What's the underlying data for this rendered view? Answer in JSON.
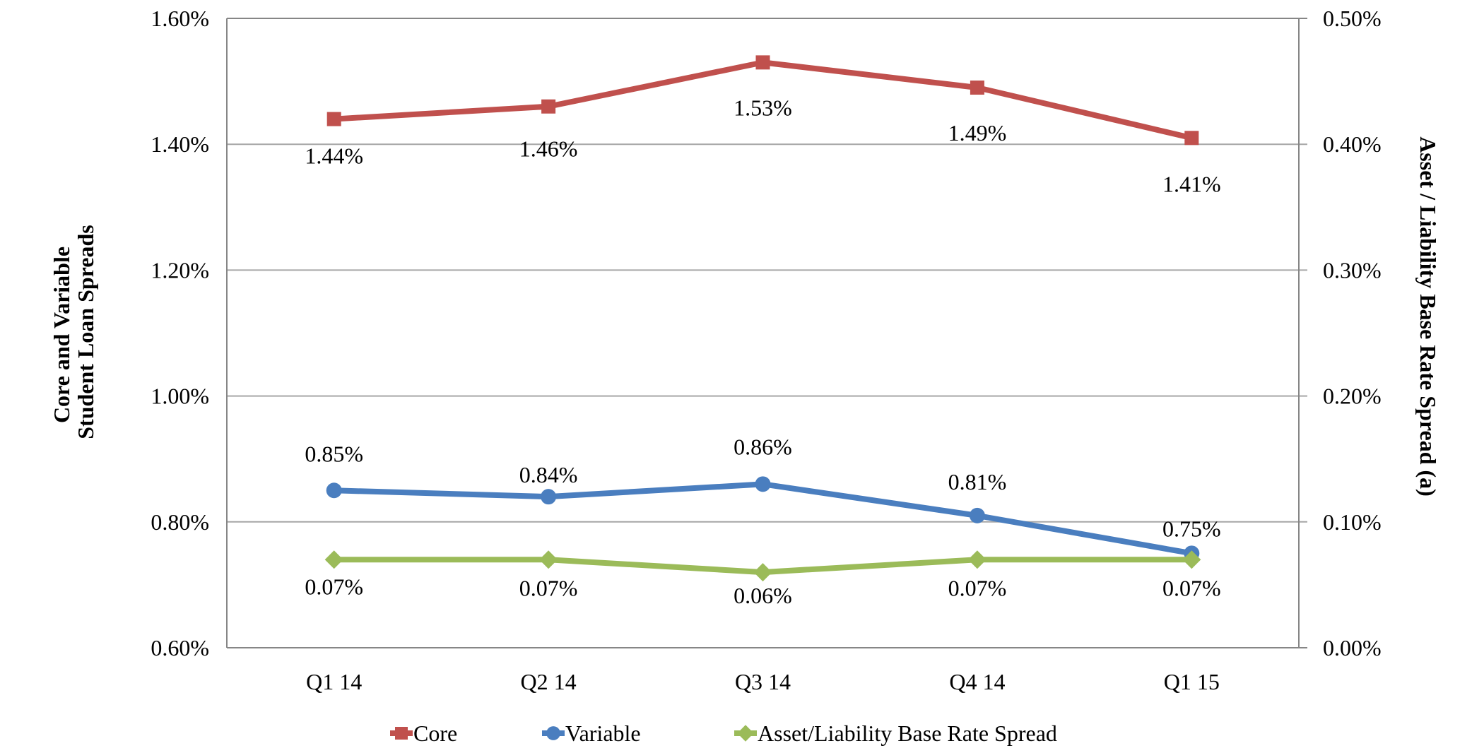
{
  "chart_data": {
    "type": "line",
    "title": "",
    "categories": [
      "Q1 14",
      "Q2 14",
      "Q3 14",
      "Q4 14",
      "Q1 15"
    ],
    "xlabel": "",
    "ylabel": [
      "Core and Variable",
      "Student Loan Spreads"
    ],
    "y2label": "Asset / Liability Base Rate Spread (a)",
    "ylim": [
      0.6,
      1.6
    ],
    "y2lim": [
      0.0,
      0.5
    ],
    "yticks": [
      "0.60%",
      "0.80%",
      "1.00%",
      "1.20%",
      "1.40%",
      "1.60%"
    ],
    "y2ticks": [
      "0.00%",
      "0.10%",
      "0.20%",
      "0.30%",
      "0.40%",
      "0.50%"
    ],
    "ytick_values": [
      0.6,
      0.8,
      1.0,
      1.2,
      1.4,
      1.6
    ],
    "y2tick_values": [
      0.0,
      0.1,
      0.2,
      0.3,
      0.4,
      0.5
    ],
    "grid": true,
    "legend_position": "bottom",
    "series": [
      {
        "name": "Core",
        "axis": "left",
        "marker": "square",
        "color": "#c0504d",
        "values": [
          1.44,
          1.46,
          1.53,
          1.49,
          1.41
        ],
        "labels": [
          "1.44%",
          "1.46%",
          "1.53%",
          "1.49%",
          "1.41%"
        ]
      },
      {
        "name": "Variable",
        "axis": "left",
        "marker": "circle",
        "color": "#4a7ebf",
        "values": [
          0.85,
          0.84,
          0.86,
          0.81,
          0.75
        ],
        "labels": [
          "0.85%",
          "0.84%",
          "0.86%",
          "0.81%",
          "0.75%"
        ]
      },
      {
        "name": "Asset/Liability Base Rate Spread",
        "axis": "right",
        "marker": "diamond",
        "color": "#9bbb59",
        "values": [
          0.07,
          0.07,
          0.06,
          0.07,
          0.07
        ],
        "labels": [
          "0.07%",
          "0.07%",
          "0.06%",
          "0.07%",
          "0.07%"
        ]
      }
    ]
  }
}
